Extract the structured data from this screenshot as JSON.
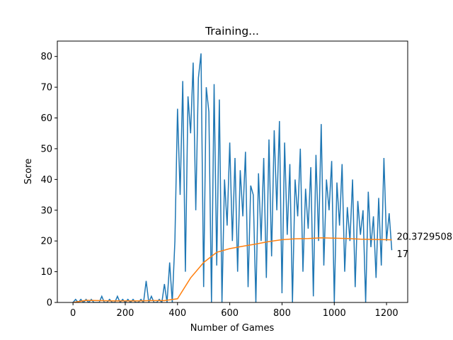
{
  "chart_data": {
    "type": "line",
    "title": "Training...",
    "xlabel": "Number of Games",
    "ylabel": "Score",
    "xlim": [
      -60,
      1281
    ],
    "ylim": [
      0,
      85
    ],
    "xticks": [
      0,
      200,
      400,
      600,
      800,
      1000,
      1200
    ],
    "yticks": [
      0,
      10,
      20,
      30,
      40,
      50,
      60,
      70,
      80
    ],
    "series": [
      {
        "color": "#1f77b4",
        "x": [
          0,
          10,
          20,
          30,
          40,
          50,
          60,
          70,
          80,
          90,
          100,
          110,
          120,
          130,
          140,
          150,
          160,
          170,
          180,
          190,
          200,
          210,
          220,
          230,
          240,
          250,
          260,
          270,
          280,
          290,
          300,
          310,
          320,
          330,
          340,
          350,
          360,
          370,
          380,
          390,
          400,
          410,
          420,
          430,
          440,
          450,
          460,
          470,
          480,
          490,
          500,
          510,
          520,
          530,
          540,
          550,
          560,
          570,
          580,
          590,
          600,
          610,
          620,
          630,
          640,
          650,
          660,
          670,
          680,
          690,
          700,
          710,
          720,
          730,
          740,
          750,
          760,
          770,
          780,
          790,
          800,
          810,
          820,
          830,
          840,
          850,
          860,
          870,
          880,
          890,
          900,
          910,
          920,
          930,
          940,
          950,
          960,
          970,
          980,
          990,
          1000,
          1010,
          1020,
          1030,
          1040,
          1050,
          1060,
          1070,
          1080,
          1090,
          1100,
          1110,
          1120,
          1130,
          1140,
          1150,
          1160,
          1170,
          1180,
          1190,
          1200,
          1210,
          1220
        ],
        "values": [
          0,
          1,
          0,
          1,
          0,
          1,
          0,
          1,
          0,
          0,
          0,
          2,
          0,
          0,
          1,
          0,
          0,
          2,
          0,
          1,
          0,
          1,
          0,
          1,
          0,
          0,
          1,
          0,
          7,
          0,
          2,
          0,
          0,
          1,
          0,
          6,
          0,
          13,
          0,
          20,
          63,
          35,
          72,
          10,
          67,
          55,
          78,
          30,
          73,
          81,
          5,
          70,
          62,
          0,
          71,
          12,
          66,
          0,
          40,
          25,
          52,
          20,
          47,
          10,
          43,
          28,
          49,
          5,
          38,
          35,
          0,
          42,
          20,
          47,
          8,
          53,
          15,
          56,
          30,
          59,
          3,
          52,
          22,
          45,
          0,
          40,
          28,
          50,
          10,
          37,
          24,
          44,
          2,
          48,
          20,
          58,
          12,
          40,
          30,
          46,
          0,
          39,
          25,
          45,
          10,
          31,
          20,
          40,
          5,
          33,
          22,
          30,
          0,
          36,
          18,
          28,
          8,
          34,
          12,
          47,
          20,
          29,
          17
        ]
      },
      {
        "color": "#ff7f0e",
        "x": [
          0,
          50,
          100,
          150,
          200,
          250,
          300,
          350,
          400,
          450,
          500,
          550,
          600,
          650,
          700,
          750,
          800,
          850,
          900,
          950,
          1000,
          1050,
          1100,
          1150,
          1200,
          1220
        ],
        "values": [
          0,
          0.7,
          0.6,
          0.5,
          0.5,
          0.5,
          0.6,
          0.6,
          1.2,
          8,
          13,
          16.3,
          17.5,
          18.3,
          19,
          19.8,
          20.4,
          20.7,
          20.8,
          21,
          20.9,
          20.8,
          20.6,
          20.5,
          20.4,
          20.37295081967213
        ]
      }
    ]
  }
}
